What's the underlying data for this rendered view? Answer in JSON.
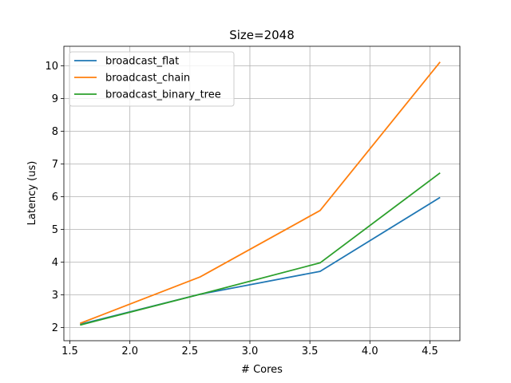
{
  "chart_data": {
    "type": "line",
    "title": "Size=2048",
    "xlabel": "# Cores",
    "ylabel": "Latency (us)",
    "xlim": [
      1.45,
      4.75
    ],
    "ylim": [
      1.6,
      10.6
    ],
    "xticks": [
      1.5,
      2.0,
      2.5,
      3.0,
      3.5,
      4.0,
      4.5
    ],
    "xtick_labels": [
      "1.5",
      "2.0",
      "2.5",
      "3.0",
      "3.5",
      "4.0",
      "4.5"
    ],
    "yticks": [
      2,
      3,
      4,
      5,
      6,
      7,
      8,
      9,
      10
    ],
    "ytick_labels": [
      "2",
      "3",
      "4",
      "5",
      "6",
      "7",
      "8",
      "9",
      "10"
    ],
    "grid": true,
    "legend_position": "top-left",
    "x": [
      1.585,
      2.585,
      3.585,
      4.585
    ],
    "series": [
      {
        "name": "broadcast_flat",
        "color": "#1f77b4",
        "values": [
          2.1,
          3.02,
          3.72,
          5.98
        ]
      },
      {
        "name": "broadcast_chain",
        "color": "#ff7f0e",
        "values": [
          2.13,
          3.55,
          5.58,
          10.12
        ]
      },
      {
        "name": "broadcast_binary_tree",
        "color": "#2ca02c",
        "values": [
          2.08,
          3.02,
          3.98,
          6.73
        ]
      }
    ]
  }
}
